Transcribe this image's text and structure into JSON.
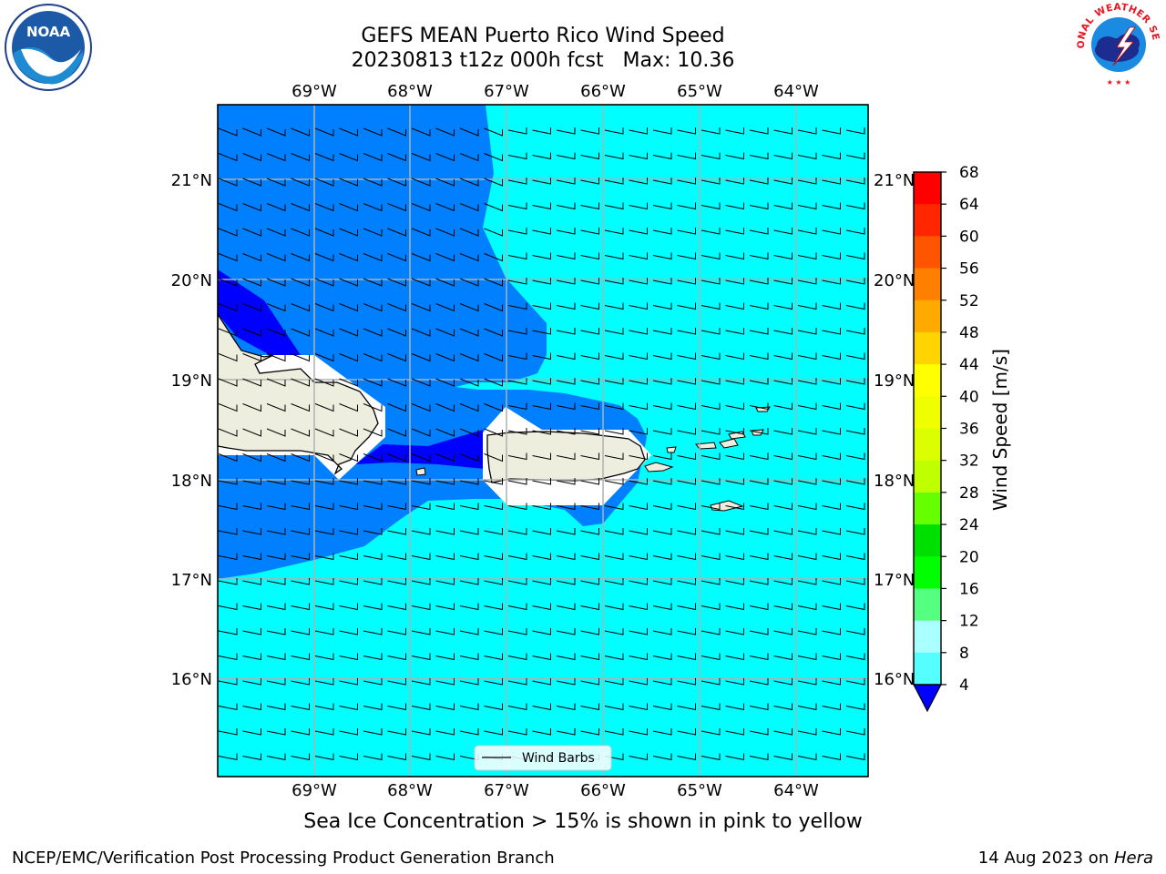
{
  "title": {
    "line1": "GEFS MEAN Puerto Rico Wind Speed",
    "line2": "20230813 t12z 000h fcst   Max: 10.36"
  },
  "logos": {
    "left": {
      "name": "noaa-logo",
      "text": "NOAA"
    },
    "right": {
      "name": "nws-logo",
      "text": "NATIONAL WEATHER SERVICE"
    }
  },
  "map": {
    "lon_labels": [
      "69°W",
      "68°W",
      "67°W",
      "66°W",
      "65°W",
      "64°W"
    ],
    "lat_labels": [
      "21°N",
      "20°N",
      "19°N",
      "18°N",
      "17°N",
      "16°N"
    ],
    "legend_label": "Wind Barbs",
    "colors": {
      "light": "#00ffff",
      "medium": "#0080ff",
      "dark": "#0000ff",
      "land": "#eeeede"
    }
  },
  "colorbar": {
    "label": "Wind Speed [m/s]",
    "ticks": [
      "68",
      "64",
      "60",
      "56",
      "52",
      "48",
      "44",
      "40",
      "36",
      "32",
      "28",
      "24",
      "20",
      "16",
      "12",
      "8",
      "4"
    ],
    "colors_top_down": [
      "#ff0000",
      "#ff2600",
      "#ff5500",
      "#ff8000",
      "#ffaa00",
      "#ffd400",
      "#ffff00",
      "#f0ff00",
      "#dcff00",
      "#c0ff00",
      "#66ff00",
      "#00e000",
      "#00ff00",
      "#55ff80",
      "#aaffff",
      "#55ffff",
      "#00ffff",
      "#0080ff"
    ],
    "extend_color": "#0000ff"
  },
  "note": "Sea Ice Concentration > 15% is shown in pink to yellow",
  "footer": {
    "left": "NCEP/EMC/Verification Post Processing Product Generation Branch",
    "date": "14 Aug 2023 on ",
    "machine": "Hera"
  }
}
